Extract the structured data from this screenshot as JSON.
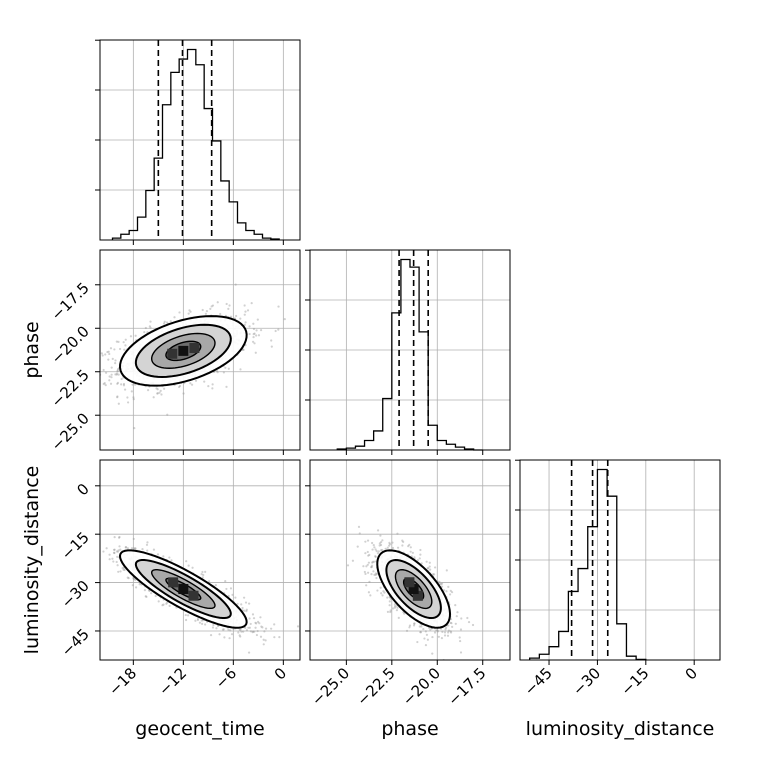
{
  "chart_data": {
    "type": "corner",
    "grid": true,
    "parameters": [
      "geocent_time",
      "phase",
      "luminosity_distance"
    ],
    "quantiles_note_lines": "dashed",
    "histograms": [
      {
        "parameter": "geocent_time",
        "xlim": [
          -22,
          2
        ],
        "bin_edges": [
          -20.5,
          -19.5,
          -18.5,
          -17.5,
          -16.5,
          -15.5,
          -14.5,
          -13.5,
          -12.5,
          -11.5,
          -10.5,
          -9.5,
          -8.5,
          -7.5,
          -6.5,
          -5.5,
          -4.5,
          -3.5,
          -2.5,
          -1.5,
          -0.5
        ],
        "counts": [
          0.01,
          0.03,
          0.05,
          0.12,
          0.26,
          0.43,
          0.71,
          0.88,
          0.95,
          1.0,
          0.92,
          0.69,
          0.52,
          0.31,
          0.2,
          0.09,
          0.05,
          0.03,
          0.01,
          0.005
        ],
        "quantiles": [
          -15.0,
          -12.1,
          -8.6
        ]
      },
      {
        "parameter": "phase",
        "xlim": [
          -27,
          -16
        ],
        "bin_edges": [
          -25.5,
          -25.0,
          -24.5,
          -24.0,
          -23.5,
          -23.0,
          -22.5,
          -22.0,
          -21.5,
          -21.0,
          -20.5,
          -20.0,
          -19.5,
          -19.0,
          -18.5,
          -18.0,
          -17.5
        ],
        "counts": [
          0.005,
          0.01,
          0.02,
          0.05,
          0.1,
          0.27,
          0.72,
          1.0,
          0.96,
          0.62,
          0.13,
          0.05,
          0.03,
          0.015,
          0.005,
          0.0
        ],
        "quantiles": [
          -22.1,
          -21.3,
          -20.5
        ]
      },
      {
        "parameter": "luminosity_distance",
        "xlim": [
          -54,
          8
        ],
        "bin_edges": [
          -51,
          -48,
          -45,
          -42,
          -39,
          -36,
          -33,
          -30,
          -27,
          -24,
          -21,
          -18,
          -15
        ],
        "counts": [
          0.01,
          0.03,
          0.07,
          0.15,
          0.36,
          0.48,
          0.7,
          1.0,
          0.86,
          0.19,
          0.02,
          0.003
        ],
        "quantiles": [
          -38,
          -31.5,
          -26.8
        ]
      }
    ],
    "panels_2d": [
      {
        "x_param": "geocent_time",
        "y_param": "phase",
        "xlim": [
          -22,
          2
        ],
        "ylim": [
          -27,
          -15.5
        ],
        "center": [
          -12.0,
          -21.3
        ],
        "sx": 3.8,
        "sy": 1.0,
        "rho": 0.45
      },
      {
        "x_param": "geocent_time",
        "y_param": "luminosity_distance",
        "xlim": [
          -22,
          2
        ],
        "ylim": [
          -54,
          8
        ],
        "center": [
          -12.0,
          -32.0
        ],
        "sx": 3.8,
        "sy": 6.0,
        "rho": -0.85
      },
      {
        "x_param": "phase",
        "y_param": "luminosity_distance",
        "xlim": [
          -27,
          -16
        ],
        "ylim": [
          -54,
          8
        ],
        "center": [
          -21.3,
          -32.0
        ],
        "sx": 1.0,
        "sy": 6.0,
        "rho": -0.65
      }
    ],
    "ticks": {
      "geocent_time": {
        "values": [
          -18,
          -12,
          -6,
          0
        ],
        "labels": [
          "−18",
          "−12",
          "−6",
          "0"
        ]
      },
      "phase": {
        "values": [
          -25.0,
          -22.5,
          -20.0,
          -17.5
        ],
        "labels": [
          "−25.0",
          "−22.5",
          "−20.0",
          "−17.5"
        ]
      },
      "luminosity_distance": {
        "values": [
          -45,
          -30,
          -15,
          0
        ],
        "labels": [
          "−45",
          "−30",
          "−15",
          "0"
        ]
      }
    },
    "axis_labels": {
      "x": [
        "geocent_time",
        "phase",
        "luminosity_distance"
      ],
      "y": [
        "phase",
        "luminosity_distance"
      ]
    }
  }
}
